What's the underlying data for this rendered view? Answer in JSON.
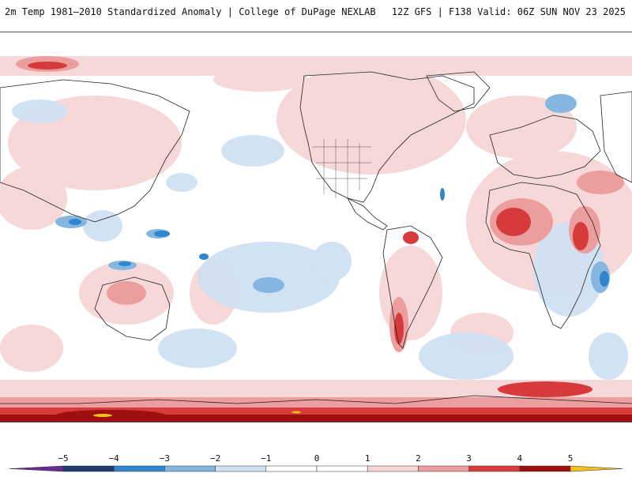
{
  "header": {
    "left_title": "2m Temp 1981–2010 Standardized Anomaly | College of DuPage NEXLAB",
    "right_title": "12Z GFS | F138 Valid: 06Z SUN NOV 23 2025"
  },
  "colors": {
    "n5": "#6a2a94",
    "n4": "#1f3a6e",
    "n3": "#2f86cf",
    "n2": "#84b6e0",
    "n1": "#cfe1f2",
    "zero": "#ffffff",
    "p1": "#f6d6d6",
    "p2": "#ec9e9e",
    "p3": "#d63a3a",
    "p4": "#9e1010",
    "p5": "#f3c11a"
  },
  "colorbar": {
    "ticks": [
      "−5",
      "−4",
      "−3",
      "−2",
      "−1",
      "0",
      "1",
      "2",
      "3",
      "4",
      "5"
    ],
    "values": [
      -5,
      -4,
      -3,
      -2,
      -1,
      0,
      1,
      2,
      3,
      4,
      5
    ]
  }
}
